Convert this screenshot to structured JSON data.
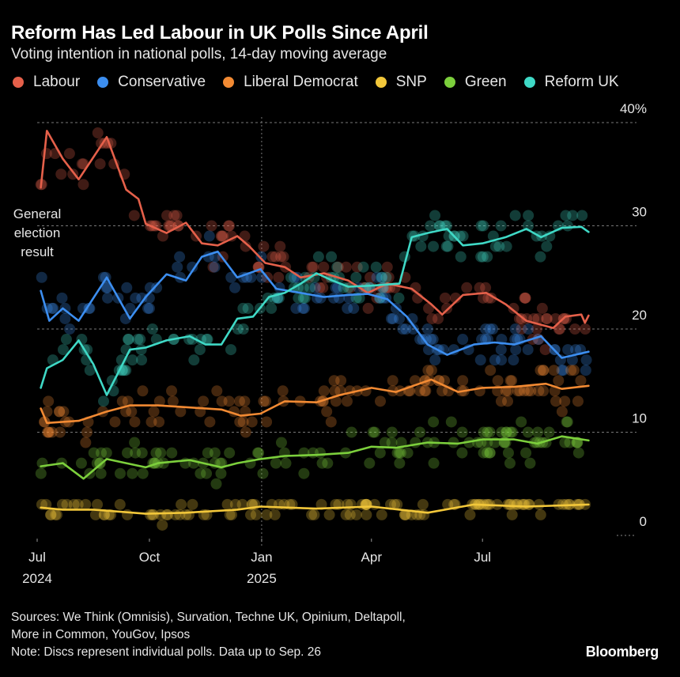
{
  "header": {
    "title": "Reform Has Led Labour in UK Polls Since April",
    "subtitle": "Voting intention in national polls, 14-day moving average"
  },
  "annotation": [
    "General",
    "election",
    "result"
  ],
  "footer": {
    "sources": "Sources: We Think (Omnisis), Survation, Techne UK, Opinium, Deltapoll,",
    "sources2": "More in Common, YouGov, Ipsos",
    "note": "Note: Discs represent individual polls. Data up to Sep. 26",
    "logo": "Bloomberg"
  },
  "chart_data": {
    "type": "line",
    "title": "Reform Has Led Labour in UK Polls Since April",
    "subtitle": "Voting intention in national polls, 14-day moving average",
    "ylim": [
      0,
      40
    ],
    "y_ticks": [
      {
        "value": 40,
        "label": "40%"
      },
      {
        "value": 30,
        "label": "30"
      },
      {
        "value": 20,
        "label": "20"
      },
      {
        "value": 10,
        "label": "10"
      },
      {
        "value": 0,
        "label": "0"
      }
    ],
    "x_ticks": [
      {
        "date": "2024-07-01",
        "label": "Jul",
        "label2": "2024"
      },
      {
        "date": "2024-10-01",
        "label": "Oct",
        "label2": ""
      },
      {
        "date": "2025-01-01",
        "label": "Jan",
        "label2": "2025"
      },
      {
        "date": "2025-04-01",
        "label": "Apr",
        "label2": ""
      },
      {
        "date": "2025-07-01",
        "label": "Jul",
        "label2": ""
      }
    ],
    "xlim": [
      "2024-07-01",
      "2025-09-26"
    ],
    "grid": true,
    "legend_position": "top",
    "series": [
      {
        "name": "Labour",
        "color": "#e5604a",
        "points": [
          [
            "2024-07-04",
            33.7
          ],
          [
            "2024-07-09",
            39.2
          ],
          [
            "2024-07-22",
            36.5
          ],
          [
            "2024-08-04",
            34.5
          ],
          [
            "2024-08-27",
            38.6
          ],
          [
            "2024-09-12",
            33.5
          ],
          [
            "2024-09-22",
            32.6
          ],
          [
            "2024-09-28",
            30.2
          ],
          [
            "2024-10-15",
            29.3
          ],
          [
            "2024-10-31",
            30.3
          ],
          [
            "2024-11-13",
            28.3
          ],
          [
            "2024-11-26",
            28.1
          ],
          [
            "2024-12-12",
            29.0
          ],
          [
            "2024-12-22",
            28.0
          ],
          [
            "2025-01-04",
            26.4
          ],
          [
            "2025-01-20",
            26.0
          ],
          [
            "2025-02-02",
            25.0
          ],
          [
            "2025-02-21",
            25.4
          ],
          [
            "2025-03-13",
            24.7
          ],
          [
            "2025-03-29",
            23.5
          ],
          [
            "2025-04-14",
            24.4
          ],
          [
            "2025-05-04",
            23.9
          ],
          [
            "2025-05-20",
            22.4
          ],
          [
            "2025-05-29",
            21.4
          ],
          [
            "2025-06-15",
            23.3
          ],
          [
            "2025-07-04",
            23.5
          ],
          [
            "2025-07-20",
            22.4
          ],
          [
            "2025-08-06",
            20.8
          ],
          [
            "2025-08-28",
            20.1
          ],
          [
            "2025-09-07",
            21.2
          ],
          [
            "2025-09-20",
            21.4
          ],
          [
            "2025-09-23",
            20.6
          ],
          [
            "2025-09-26",
            21.3
          ]
        ]
      },
      {
        "name": "Conservative",
        "color": "#3c8ef0",
        "points": [
          [
            "2024-07-04",
            23.7
          ],
          [
            "2024-07-11",
            20.8
          ],
          [
            "2024-07-22",
            22.0
          ],
          [
            "2024-08-04",
            20.8
          ],
          [
            "2024-08-27",
            25.0
          ],
          [
            "2024-09-15",
            21.0
          ],
          [
            "2024-09-28",
            23.1
          ],
          [
            "2024-10-15",
            25.3
          ],
          [
            "2024-10-31",
            24.7
          ],
          [
            "2024-11-13",
            27.0
          ],
          [
            "2024-11-26",
            27.5
          ],
          [
            "2024-12-12",
            25.0
          ],
          [
            "2024-12-31",
            25.8
          ],
          [
            "2025-01-13",
            23.9
          ],
          [
            "2025-02-02",
            23.5
          ],
          [
            "2025-02-21",
            23.1
          ],
          [
            "2025-03-13",
            23.3
          ],
          [
            "2025-03-29",
            23.4
          ],
          [
            "2025-04-14",
            22.9
          ],
          [
            "2025-04-30",
            21.2
          ],
          [
            "2025-05-17",
            18.5
          ],
          [
            "2025-06-02",
            17.5
          ],
          [
            "2025-06-24",
            18.5
          ],
          [
            "2025-07-11",
            18.7
          ],
          [
            "2025-07-27",
            18.5
          ],
          [
            "2025-08-18",
            19.3
          ],
          [
            "2025-09-04",
            17.2
          ],
          [
            "2025-09-26",
            17.8
          ]
        ]
      },
      {
        "name": "Liberal Democrat",
        "color": "#f28a33",
        "points": [
          [
            "2024-07-04",
            12.3
          ],
          [
            "2024-07-09",
            10.9
          ],
          [
            "2024-08-04",
            11.1
          ],
          [
            "2024-08-27",
            12.0
          ],
          [
            "2024-09-15",
            12.6
          ],
          [
            "2024-10-08",
            12.6
          ],
          [
            "2024-11-03",
            12.4
          ],
          [
            "2024-11-29",
            12.2
          ],
          [
            "2024-12-15",
            11.6
          ],
          [
            "2024-12-31",
            11.8
          ],
          [
            "2025-01-20",
            13.0
          ],
          [
            "2025-02-15",
            12.9
          ],
          [
            "2025-03-06",
            13.6
          ],
          [
            "2025-04-01",
            14.3
          ],
          [
            "2025-04-21",
            13.9
          ],
          [
            "2025-05-20",
            15.1
          ],
          [
            "2025-06-11",
            13.9
          ],
          [
            "2025-07-01",
            14.3
          ],
          [
            "2025-07-27",
            14.4
          ],
          [
            "2025-08-22",
            14.7
          ],
          [
            "2025-09-04",
            14.2
          ],
          [
            "2025-09-26",
            14.5
          ]
        ]
      },
      {
        "name": "SNP",
        "color": "#f2c73a",
        "points": [
          [
            "2024-07-04",
            2.7
          ],
          [
            "2024-07-22",
            2.5
          ],
          [
            "2024-08-16",
            2.5
          ],
          [
            "2024-09-28",
            2.1
          ],
          [
            "2024-10-31",
            2.2
          ],
          [
            "2024-12-12",
            2.5
          ],
          [
            "2024-12-31",
            2.8
          ],
          [
            "2025-02-15",
            2.6
          ],
          [
            "2025-04-01",
            2.8
          ],
          [
            "2025-05-17",
            2.2
          ],
          [
            "2025-06-24",
            3.0
          ],
          [
            "2025-08-06",
            2.8
          ],
          [
            "2025-09-26",
            3.0
          ]
        ]
      },
      {
        "name": "Green",
        "color": "#7ccf3c",
        "points": [
          [
            "2024-07-04",
            6.7
          ],
          [
            "2024-07-22",
            7.0
          ],
          [
            "2024-08-08",
            5.5
          ],
          [
            "2024-08-27",
            7.4
          ],
          [
            "2024-09-12",
            7.0
          ],
          [
            "2024-09-28",
            6.6
          ],
          [
            "2024-10-08",
            7.0
          ],
          [
            "2024-11-03",
            7.3
          ],
          [
            "2024-11-29",
            6.6
          ],
          [
            "2024-12-12",
            7.0
          ],
          [
            "2024-12-31",
            7.4
          ],
          [
            "2025-01-20",
            7.7
          ],
          [
            "2025-02-15",
            7.8
          ],
          [
            "2025-03-13",
            8.0
          ],
          [
            "2025-04-01",
            8.6
          ],
          [
            "2025-04-21",
            8.5
          ],
          [
            "2025-05-17",
            9.0
          ],
          [
            "2025-06-11",
            8.9
          ],
          [
            "2025-07-01",
            9.3
          ],
          [
            "2025-07-27",
            9.3
          ],
          [
            "2025-08-15",
            8.9
          ],
          [
            "2025-09-04",
            9.6
          ],
          [
            "2025-09-26",
            9.2
          ]
        ]
      },
      {
        "name": "Reform UK",
        "color": "#3fd9c6",
        "points": [
          [
            "2024-07-04",
            14.3
          ],
          [
            "2024-07-09",
            16.2
          ],
          [
            "2024-07-22",
            17.0
          ],
          [
            "2024-08-04",
            18.9
          ],
          [
            "2024-08-16",
            16.6
          ],
          [
            "2024-08-27",
            13.6
          ],
          [
            "2024-09-06",
            15.9
          ],
          [
            "2024-09-15",
            18.0
          ],
          [
            "2024-09-28",
            18.2
          ],
          [
            "2024-10-15",
            18.9
          ],
          [
            "2024-11-03",
            19.3
          ],
          [
            "2024-11-16",
            18.5
          ],
          [
            "2024-11-29",
            18.5
          ],
          [
            "2024-12-12",
            21.0
          ],
          [
            "2024-12-25",
            21.2
          ],
          [
            "2025-01-07",
            23.1
          ],
          [
            "2025-01-20",
            23.5
          ],
          [
            "2025-02-02",
            24.4
          ],
          [
            "2025-02-15",
            25.4
          ],
          [
            "2025-02-28",
            24.7
          ],
          [
            "2025-03-13",
            24.1
          ],
          [
            "2025-04-01",
            24.2
          ],
          [
            "2025-04-24",
            24.4
          ],
          [
            "2025-05-04",
            28.9
          ],
          [
            "2025-05-17",
            29.3
          ],
          [
            "2025-06-02",
            29.7
          ],
          [
            "2025-06-15",
            28.1
          ],
          [
            "2025-07-01",
            28.3
          ],
          [
            "2025-07-20",
            28.9
          ],
          [
            "2025-08-06",
            29.7
          ],
          [
            "2025-08-18",
            28.9
          ],
          [
            "2025-09-04",
            29.8
          ],
          [
            "2025-09-20",
            29.9
          ],
          [
            "2025-09-26",
            29.4
          ]
        ]
      }
    ]
  }
}
